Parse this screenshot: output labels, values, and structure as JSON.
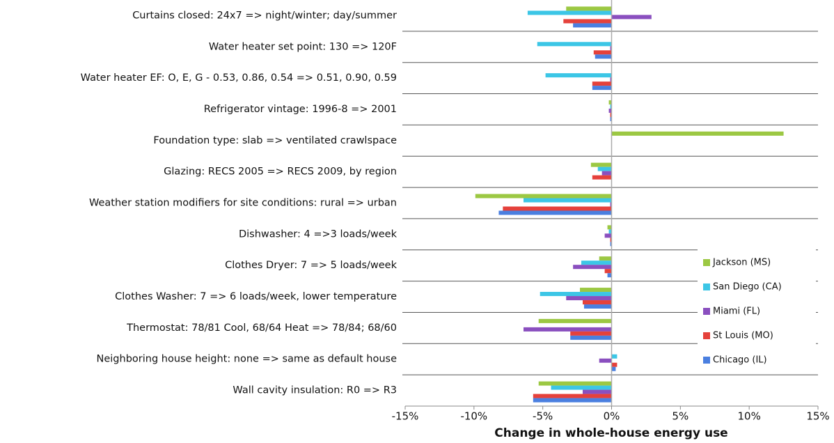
{
  "chart_data": {
    "type": "hbar",
    "x_label": "Change in whole-house energy use",
    "categories": [
      "Curtains closed: 24x7 => night/winter; day/summer",
      "Water heater set point: 130 => 120F",
      "Water heater EF: O, E, G - 0.53, 0.86, 0.54 =>  0.51, 0.90, 0.59",
      "Refrigerator vintage: 1996-8 => 2001",
      "Foundation type: slab => ventilated crawlspace",
      "Glazing: RECS 2005 => RECS 2009, by region",
      "Weather station modifiers for site conditions: rural  => urban",
      "Dishwasher: 4 =>3 loads/week",
      "Clothes Dryer: 7 => 5 loads/week",
      "Clothes Washer: 7 => 6 loads/week, lower temperature",
      "Thermostat: 78/81 Cool, 68/64 Heat => 78/84; 68/60",
      "Neighboring house height: none => same as  default house",
      "Wall cavity insulation: R0 => R3"
    ],
    "series": [
      {
        "name": "Jackson (MS)",
        "color": "#9cc843",
        "values": [
          -3.3,
          0,
          0,
          -0.2,
          12.5,
          -1.5,
          -9.9,
          -0.3,
          -0.9,
          -2.3,
          -5.3,
          0,
          -5.3
        ]
      },
      {
        "name": "San Diego (CA)",
        "color": "#3cc6e6",
        "values": [
          -6.1,
          -5.4,
          -4.8,
          -0.1,
          0,
          -1.0,
          -6.4,
          -0.2,
          -2.2,
          -5.2,
          0,
          0.4,
          -4.4
        ]
      },
      {
        "name": "Miami (FL)",
        "color": "#8a4fbf",
        "values": [
          2.9,
          -0.1,
          -0.1,
          -0.2,
          0,
          -0.7,
          -0.1,
          -0.5,
          -2.8,
          -3.3,
          -6.4,
          -0.9,
          -2.1
        ]
      },
      {
        "name": "St Louis (MO)",
        "color": "#e5413b",
        "values": [
          -3.5,
          -1.3,
          -1.4,
          -0.1,
          0,
          -1.4,
          -7.9,
          -0.1,
          -0.5,
          -2.1,
          -3.0,
          0.4,
          -5.7
        ]
      },
      {
        "name": "Chicago (IL)",
        "color": "#4a7fe0",
        "values": [
          -2.8,
          -1.2,
          -1.4,
          -0.1,
          0,
          0,
          -8.2,
          -0.1,
          -0.3,
          -2.0,
          -3.0,
          0.3,
          -5.7
        ]
      }
    ],
    "xlim": [
      -15,
      15
    ],
    "xticks": [
      {
        "value": -15,
        "label": "-15%"
      },
      {
        "value": -10,
        "label": "-10%"
      },
      {
        "value": -5,
        "label": "-5%"
      },
      {
        "value": 0,
        "label": "0%"
      },
      {
        "value": 5,
        "label": "5%"
      },
      {
        "value": 10,
        "label": "10%"
      },
      {
        "value": 15,
        "label": "15%"
      }
    ],
    "legend": "lower right"
  }
}
